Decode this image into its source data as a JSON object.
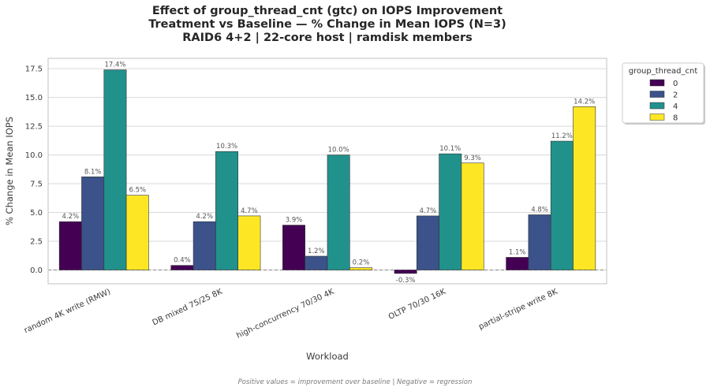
{
  "chart_data": {
    "type": "bar",
    "title_lines": [
      "Effect of group_thread_cnt (gtc) on IOPS Improvement",
      "Treatment vs Baseline — % Change in Mean IOPS (N=3)",
      "RAID6 4+2 | 22-core host | ramdisk members"
    ],
    "xlabel": "Workload",
    "ylabel": "% Change in Mean IOPS",
    "ylim": [
      -1.2,
      18.4
    ],
    "yticks": [
      0.0,
      2.5,
      5.0,
      7.5,
      10.0,
      12.5,
      15.0,
      17.5
    ],
    "ytick_labels": [
      "0.0",
      "2.5",
      "5.0",
      "7.5",
      "10.0",
      "12.5",
      "15.0",
      "17.5"
    ],
    "grid": true,
    "legend": {
      "title": "group_thread_cnt",
      "placement": "upper-right-outside"
    },
    "categories": [
      "random 4K write (RMW)",
      "DB mixed 75/25 8K",
      "high-concurrency 70/30 4K",
      "OLTP 70/30 16K",
      "partial-stripe write 8K"
    ],
    "series": [
      {
        "name": "0",
        "color": "#440154",
        "values": [
          4.2,
          0.4,
          3.9,
          -0.3,
          1.1
        ],
        "labels": [
          "4.2%",
          "0.4%",
          "3.9%",
          "-0.3%",
          "1.1%"
        ]
      },
      {
        "name": "2",
        "color": "#3b528b",
        "values": [
          8.1,
          4.2,
          1.2,
          4.7,
          4.8
        ],
        "labels": [
          "8.1%",
          "4.2%",
          "1.2%",
          "4.7%",
          "4.8%"
        ]
      },
      {
        "name": "4",
        "color": "#21918c",
        "values": [
          17.4,
          10.3,
          10.0,
          10.1,
          11.2
        ],
        "labels": [
          "17.4%",
          "10.3%",
          "10.0%",
          "10.1%",
          "11.2%"
        ]
      },
      {
        "name": "8",
        "color": "#fde725",
        "values": [
          6.5,
          4.7,
          0.2,
          9.3,
          14.2
        ],
        "labels": [
          "6.5%",
          "4.7%",
          "0.2%",
          "9.3%",
          "14.2%"
        ]
      }
    ],
    "caption": "Positive values = improvement over baseline | Negative = regression"
  }
}
